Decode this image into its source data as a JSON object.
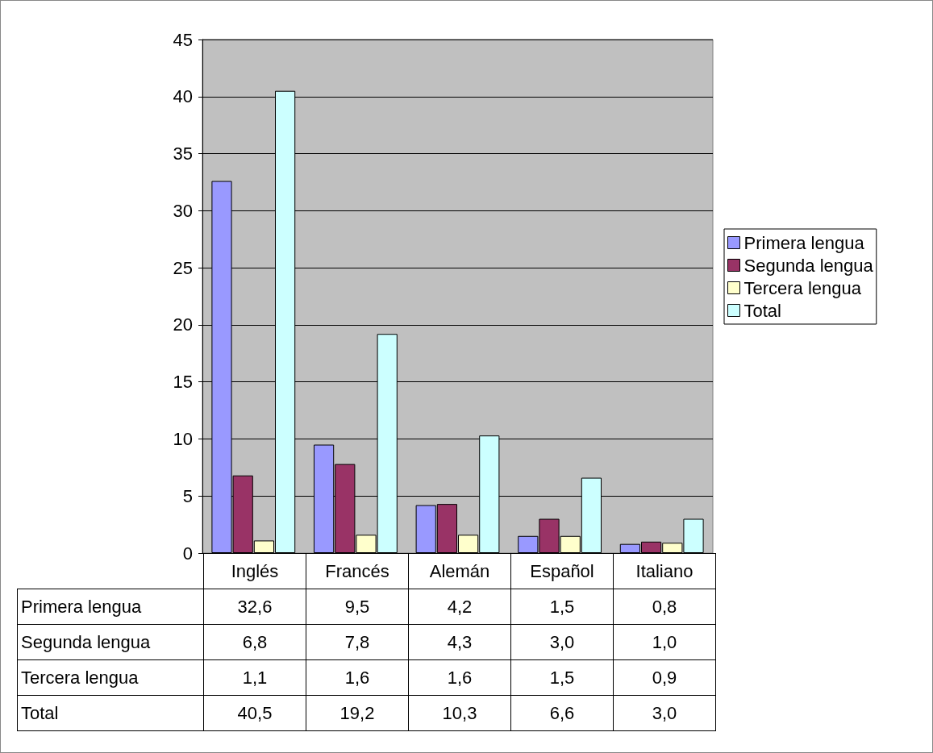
{
  "chart_data": {
    "type": "bar",
    "categories": [
      "Inglés",
      "Francés",
      "Alemán",
      "Español",
      "Italiano"
    ],
    "series": [
      {
        "name": "Primera lengua",
        "color": "#9999ff",
        "values": [
          32.6,
          9.5,
          4.2,
          1.5,
          0.8
        ],
        "value_labels": [
          "32,6",
          "9,5",
          "4,2",
          "1,5",
          "0,8"
        ]
      },
      {
        "name": "Segunda lengua",
        "color": "#993366",
        "values": [
          6.8,
          7.8,
          4.3,
          3.0,
          1.0
        ],
        "value_labels": [
          "6,8",
          "7,8",
          "4,3",
          "3,0",
          "1,0"
        ]
      },
      {
        "name": "Tercera lengua",
        "color": "#ffffcc",
        "values": [
          1.1,
          1.6,
          1.6,
          1.5,
          0.9
        ],
        "value_labels": [
          "1,1",
          "1,6",
          "1,6",
          "1,5",
          "0,9"
        ]
      },
      {
        "name": "Total",
        "color": "#ccffff",
        "values": [
          40.5,
          19.2,
          10.3,
          6.6,
          3.0
        ],
        "value_labels": [
          "40,5",
          "19,2",
          "10,3",
          "6,6",
          "3,0"
        ]
      }
    ],
    "ylim": [
      0,
      45
    ],
    "yticks": [
      0,
      5,
      10,
      15,
      20,
      25,
      30,
      35,
      40,
      45
    ],
    "grid": "y",
    "legend": "right"
  }
}
